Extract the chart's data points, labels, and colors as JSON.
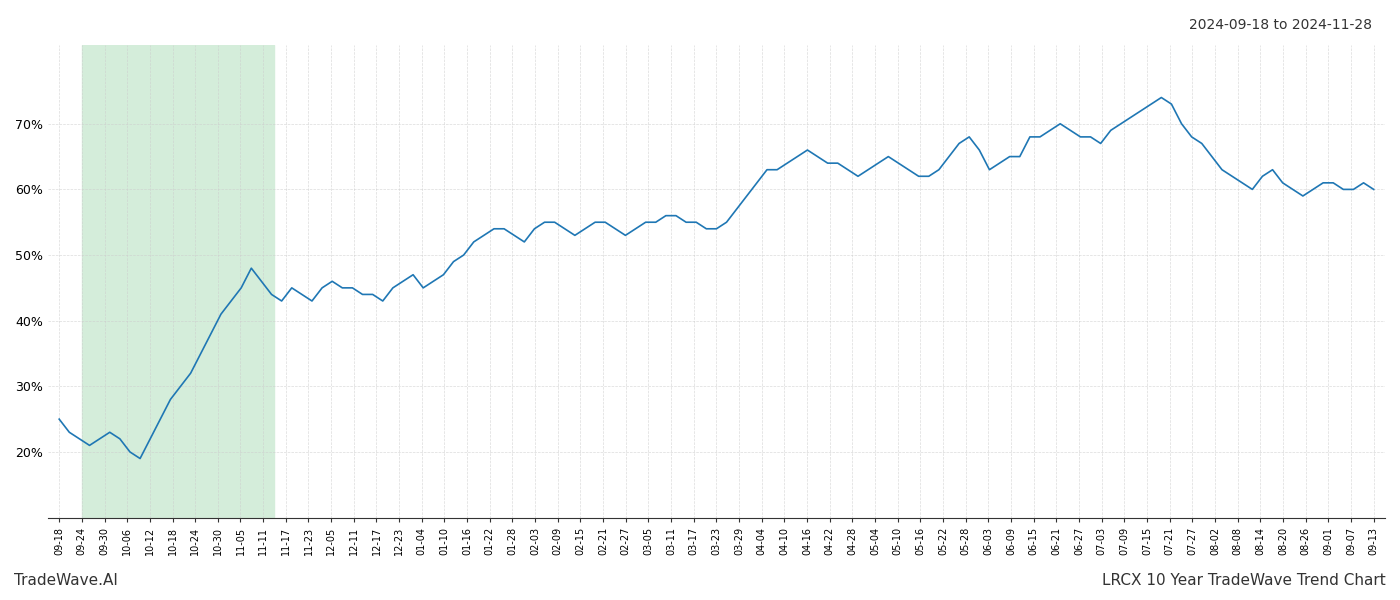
{
  "title_top_right": "2024-09-18 to 2024-11-28",
  "title_bottom_left": "TradeWave.AI",
  "title_bottom_right": "LRCX 10 Year TradeWave Trend Chart",
  "line_color": "#1f77b4",
  "shaded_region_color": "#d4edda",
  "shaded_region_start": "2024-10-04",
  "shaded_region_end": "2024-11-29",
  "background_color": "#ffffff",
  "grid_color": "#cccccc",
  "x_tick_labels": [
    "09-18",
    "09-24",
    "09-30",
    "10-06",
    "10-12",
    "10-18",
    "10-24",
    "10-30",
    "11-05",
    "11-11",
    "11-17",
    "11-23",
    "12-05",
    "12-11",
    "12-17",
    "12-23",
    "01-04",
    "01-10",
    "01-16",
    "01-22",
    "01-28",
    "02-03",
    "02-09",
    "02-15",
    "02-21",
    "02-27",
    "03-05",
    "03-11",
    "03-17",
    "03-23",
    "03-29",
    "04-04",
    "04-10",
    "04-16",
    "04-22",
    "04-28",
    "05-04",
    "05-10",
    "05-16",
    "05-22",
    "05-28",
    "06-03",
    "06-09",
    "06-15",
    "06-21",
    "06-27",
    "07-03",
    "07-09",
    "07-15",
    "07-21",
    "07-27",
    "08-02",
    "08-08",
    "08-14",
    "08-20",
    "08-26",
    "09-01",
    "09-07",
    "09-13"
  ],
  "y_tick_labels": [
    "20%",
    "30%",
    "40%",
    "50%",
    "60%",
    "70%"
  ],
  "y_values": [
    25,
    23,
    22,
    21,
    22,
    23,
    22,
    20,
    19,
    22,
    25,
    28,
    30,
    32,
    35,
    38,
    41,
    43,
    45,
    48,
    46,
    44,
    43,
    45,
    44,
    43,
    45,
    46,
    45,
    45,
    44,
    44,
    43,
    45,
    46,
    47,
    45,
    46,
    47,
    49,
    50,
    52,
    53,
    54,
    54,
    53,
    52,
    54,
    55,
    55,
    54,
    53,
    54,
    55,
    55,
    54,
    53,
    54,
    55,
    55,
    56,
    56,
    55,
    55,
    54,
    54,
    55,
    57,
    59,
    61,
    63,
    63,
    64,
    65,
    66,
    65,
    64,
    64,
    63,
    62,
    63,
    64,
    65,
    64,
    63,
    62,
    62,
    63,
    65,
    67,
    68,
    66,
    63,
    64,
    65,
    65,
    68,
    68,
    69,
    70,
    69,
    68,
    68,
    67,
    69,
    70,
    71,
    72,
    73,
    74,
    73,
    70,
    68,
    67,
    65,
    63,
    62,
    61,
    60,
    62,
    63,
    61,
    60,
    59,
    60,
    61,
    61,
    60,
    60,
    61,
    60
  ]
}
